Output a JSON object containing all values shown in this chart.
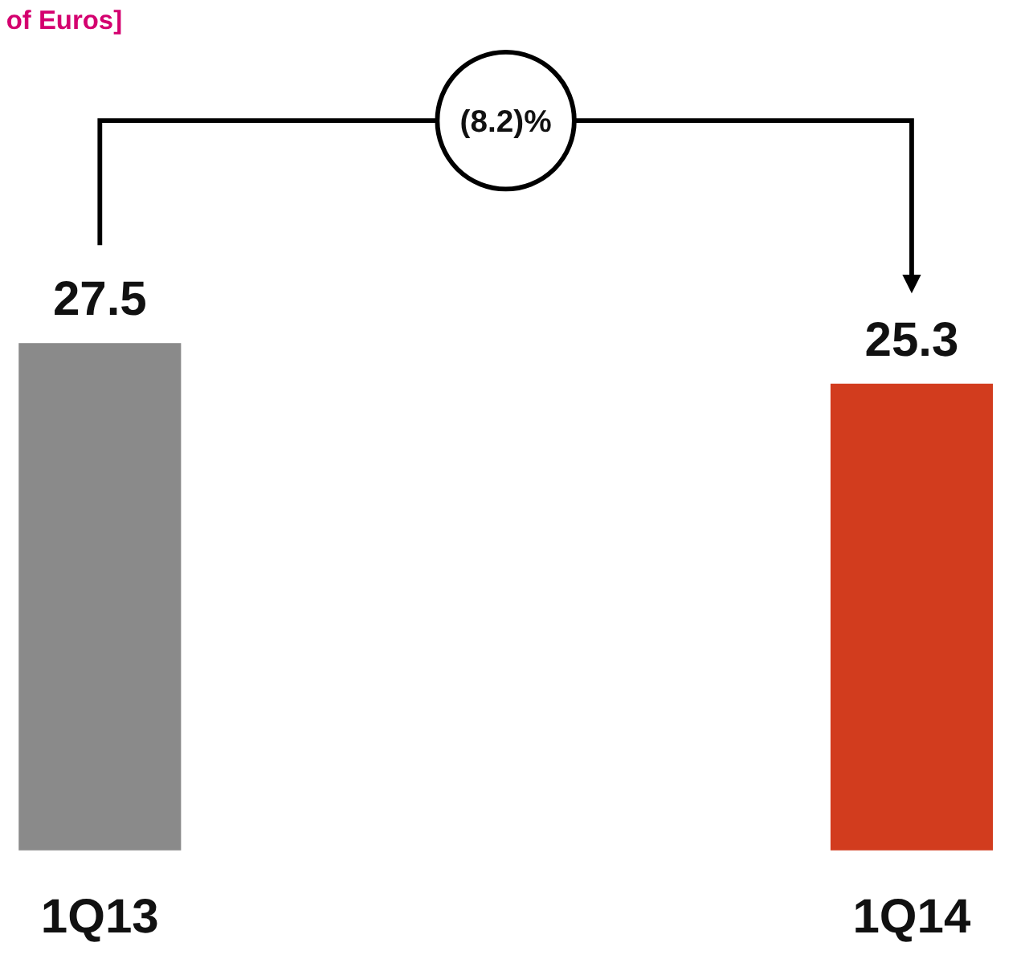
{
  "chart_data": {
    "type": "bar",
    "title": "of Euros]",
    "categories": [
      "1Q13",
      "1Q14"
    ],
    "values": [
      27.5,
      25.3
    ],
    "colors": [
      "#8a8a8a",
      "#d23c1e"
    ],
    "data_labels": true,
    "annotations": [
      "(8.2)%"
    ]
  }
}
